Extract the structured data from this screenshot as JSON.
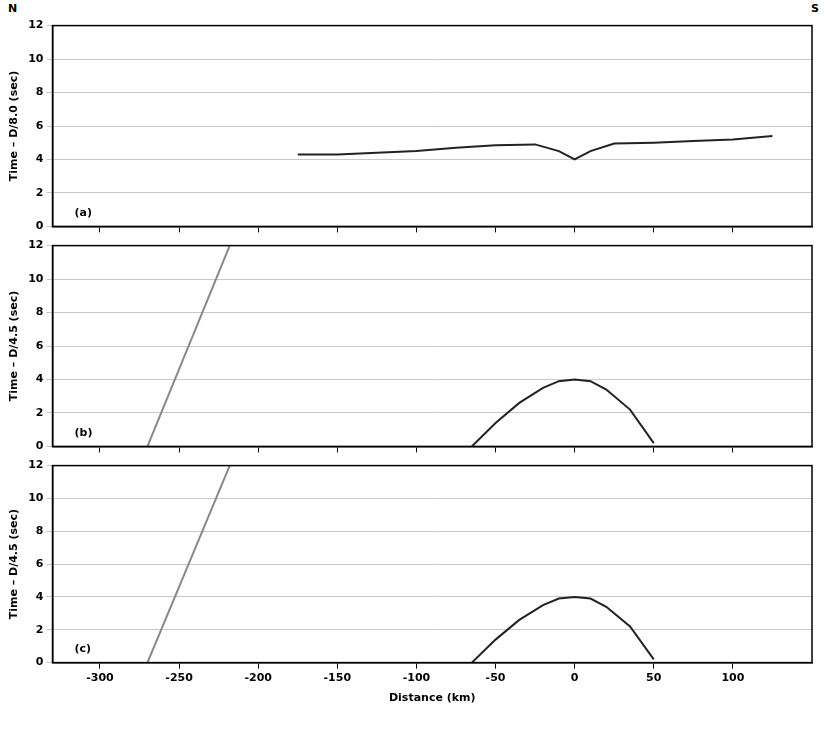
{
  "corner_labels": {
    "left": "N",
    "right": "S"
  },
  "chart_data": [
    {
      "type": "line",
      "annotation": "(a)",
      "y_label": "Time – D/8.0 (sec)",
      "xlim": [
        -330,
        150
      ],
      "xticks": [
        -300,
        -250,
        -200,
        -150,
        -100,
        -50,
        0,
        50,
        100
      ],
      "ylim": [
        0,
        12
      ],
      "yticks": [
        0,
        2,
        4,
        6,
        8,
        10,
        12
      ],
      "grid": true,
      "tick_labels": "y",
      "series": [
        {
          "color": "#222222",
          "line_style": "solid",
          "x": [
            -175,
            -150,
            -125,
            -100,
            -75,
            -50,
            -25,
            -10,
            0,
            10,
            25,
            50,
            75,
            100,
            125
          ],
          "values": [
            4.3,
            4.3,
            4.4,
            4.5,
            4.7,
            4.85,
            4.9,
            4.5,
            4.0,
            4.5,
            4.95,
            5.0,
            5.1,
            5.2,
            5.4
          ]
        }
      ]
    },
    {
      "type": "line",
      "annotation": "(b)",
      "y_label": "Time – D/4.5 (sec)",
      "xlim": [
        -330,
        150
      ],
      "xticks": [
        -300,
        -250,
        -200,
        -150,
        -100,
        -50,
        0,
        50,
        100
      ],
      "ylim": [
        0,
        12
      ],
      "yticks": [
        0,
        2,
        4,
        6,
        8,
        10,
        12
      ],
      "grid": true,
      "tick_labels": "y",
      "series": [
        {
          "color": "#222222",
          "line_style": "solid",
          "x": [
            -65,
            -50,
            -35,
            -20,
            -10,
            0,
            10,
            20,
            35,
            50
          ],
          "values": [
            0,
            1.4,
            2.6,
            3.5,
            3.9,
            4.0,
            3.9,
            3.4,
            2.2,
            0.2
          ]
        },
        {
          "color": "#888888",
          "line_style": "solid",
          "x": [
            -270,
            -218
          ],
          "values": [
            0,
            12
          ]
        }
      ]
    },
    {
      "type": "line",
      "annotation": "(c)",
      "y_label": "Time – D/4.5 (sec)",
      "x_label": "Distance (km)",
      "xlim": [
        -330,
        150
      ],
      "xticks": [
        -300,
        -250,
        -200,
        -150,
        -100,
        -50,
        0,
        50,
        100
      ],
      "ylim": [
        0,
        12
      ],
      "yticks": [
        0,
        2,
        4,
        6,
        8,
        10,
        12
      ],
      "grid": true,
      "series": [
        {
          "color": "#222222",
          "line_style": "solid",
          "x": [
            -65,
            -50,
            -35,
            -20,
            -10,
            0,
            10,
            20,
            35,
            50
          ],
          "values": [
            0,
            1.4,
            2.6,
            3.5,
            3.9,
            4.0,
            3.9,
            3.4,
            2.2,
            0.2
          ]
        },
        {
          "color": "#888888",
          "line_style": "solid",
          "x": [
            -270,
            -218
          ],
          "values": [
            0,
            12
          ]
        }
      ]
    }
  ]
}
